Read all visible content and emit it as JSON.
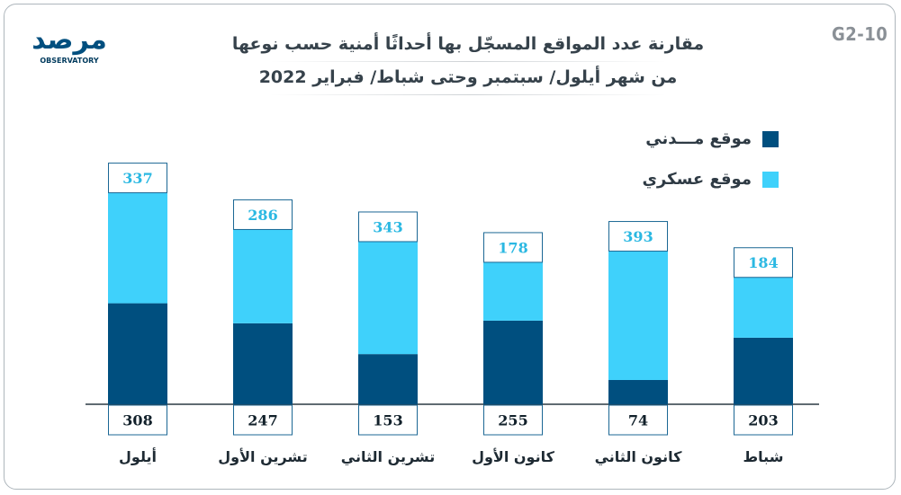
{
  "header": {
    "code": "G2-10",
    "title_line1": "مقارنة عدد المواقع المسجّل بها أحداثًا أمنية حسب نوعها",
    "title_line2": "من شهر أيلول/ سبتمبر وحتى شباط/ فبراير 2022"
  },
  "logo": {
    "brand_text": "مرصد",
    "sub_text": "OBSERVATORY"
  },
  "colors": {
    "civil": "#004f7f",
    "military": "#3fd1fb",
    "baseline": "#2b3a44",
    "label_box_border": "#1b6794",
    "civil_text": "#11202a",
    "military_text": "#2bb8e2"
  },
  "legend": {
    "civil_label": "موقع مـــدني",
    "military_label": "موقع عسكري"
  },
  "chart_data": {
    "type": "bar",
    "stacked": true,
    "title": "مقارنة عدد المواقع المسجّل بها أحداثًا أمنية حسب نوعها",
    "subtitle": "من شهر أيلول/ سبتمبر وحتى شباط/ فبراير 2022",
    "categories": [
      "أيلول",
      "تشرين الأول",
      "تشرين الثاني",
      "كانون الأول",
      "كانون الثاني",
      "شباط"
    ],
    "series": [
      {
        "name": "موقع مـــدني",
        "values": [
          308,
          247,
          153,
          255,
          74,
          203
        ]
      },
      {
        "name": "موقع عسكري",
        "values": [
          337,
          286,
          343,
          178,
          393,
          184
        ]
      }
    ],
    "xlabel": "",
    "ylabel": "",
    "legend_position": "top-right",
    "grid": false
  }
}
